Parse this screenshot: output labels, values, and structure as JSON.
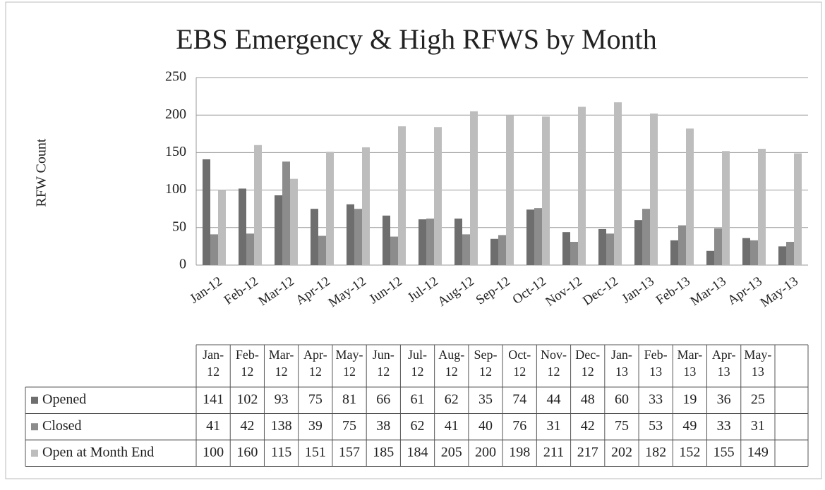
{
  "chart_data": {
    "type": "bar",
    "title": "EBS Emergency & High RFWS by Month",
    "y_label": "RFW Count",
    "categories": [
      "Jan-12",
      "Feb-12",
      "Mar-12",
      "Apr-12",
      "May-12",
      "Jun-12",
      "Jul-12",
      "Aug-12",
      "Sep-12",
      "Oct-12",
      "Nov-12",
      "Dec-12",
      "Jan-13",
      "Feb-13",
      "Mar-13",
      "Apr-13",
      "May-13"
    ],
    "series": [
      {
        "name": "Opened",
        "color": "#6e6e6e",
        "values": [
          141,
          102,
          93,
          75,
          81,
          66,
          61,
          62,
          35,
          74,
          44,
          48,
          60,
          33,
          19,
          36,
          25
        ]
      },
      {
        "name": "Closed",
        "color": "#8c8c8c",
        "values": [
          41,
          42,
          138,
          39,
          75,
          38,
          62,
          41,
          40,
          76,
          31,
          42,
          75,
          53,
          49,
          33,
          31
        ]
      },
      {
        "name": "Open at Month End",
        "color": "#bdbdbd",
        "values": [
          100,
          160,
          115,
          151,
          157,
          185,
          184,
          205,
          200,
          198,
          211,
          217,
          202,
          182,
          152,
          155,
          149
        ]
      }
    ],
    "ylim": [
      0,
      250
    ],
    "yticks": [
      0,
      50,
      100,
      150,
      200,
      250
    ],
    "grid": true
  }
}
